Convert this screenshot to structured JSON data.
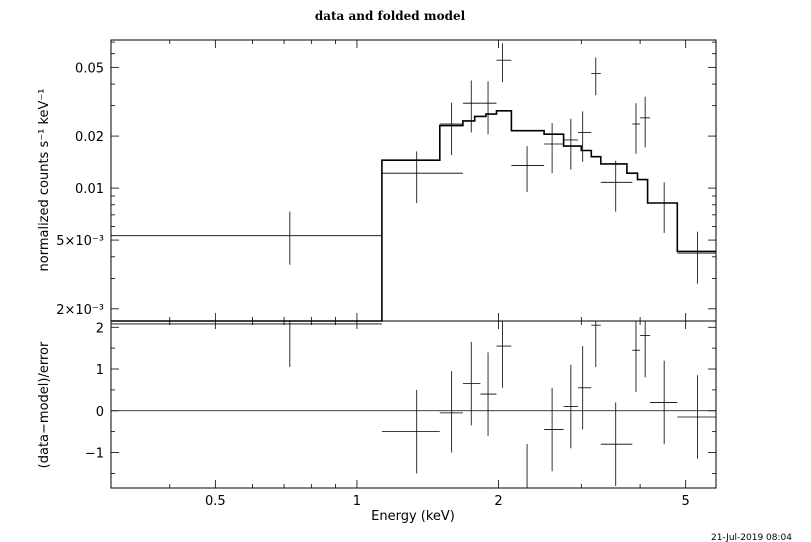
{
  "chart_data": {
    "type": "line",
    "title": "data and folded model",
    "timestamp": "21-Jul-2019 08:04",
    "xlabel": "Energy (keV)",
    "xscale": "log",
    "xlim": [
      0.3,
      5.8
    ],
    "xticks": [
      {
        "value": 0.5,
        "label": "0.5"
      },
      {
        "value": 1,
        "label": "1"
      },
      {
        "value": 2,
        "label": "2"
      },
      {
        "value": 5,
        "label": "5"
      }
    ],
    "panels": {
      "upper": {
        "ylabel": "normalized counts s⁻¹ keV⁻¹",
        "yscale": "log",
        "ylim": [
          0.0017,
          0.072
        ],
        "yticks": [
          {
            "value": 0.002,
            "label": "2×10⁻³"
          },
          {
            "value": 0.005,
            "label": "5×10⁻³"
          },
          {
            "value": 0.01,
            "label": "0.01"
          },
          {
            "value": 0.02,
            "label": "0.02"
          },
          {
            "value": 0.05,
            "label": "0.05"
          }
        ],
        "data": [
          {
            "xlo": 0.3,
            "xhi": 1.13,
            "x": 0.72,
            "y": 0.0053,
            "ylo": 0.0036,
            "yhi": 0.0073
          },
          {
            "xlo": 1.13,
            "xhi": 1.68,
            "x": 1.34,
            "y": 0.0122,
            "ylo": 0.0082,
            "yhi": 0.0163
          },
          {
            "xlo": 1.5,
            "xhi": 1.68,
            "x": 1.59,
            "y": 0.0235,
            "ylo": 0.0155,
            "yhi": 0.0312
          },
          {
            "xlo": 1.68,
            "xhi": 1.83,
            "x": 1.75,
            "y": 0.031,
            "ylo": 0.021,
            "yhi": 0.042
          },
          {
            "xlo": 1.83,
            "xhi": 1.98,
            "x": 1.9,
            "y": 0.031,
            "ylo": 0.0205,
            "yhi": 0.0415
          },
          {
            "xlo": 1.98,
            "xhi": 2.13,
            "x": 2.04,
            "y": 0.055,
            "ylo": 0.041,
            "yhi": 0.069
          },
          {
            "xlo": 2.13,
            "xhi": 2.5,
            "x": 2.3,
            "y": 0.0135,
            "ylo": 0.0095,
            "yhi": 0.0175
          },
          {
            "xlo": 2.5,
            "xhi": 2.75,
            "x": 2.6,
            "y": 0.018,
            "ylo": 0.0122,
            "yhi": 0.0238
          },
          {
            "xlo": 2.75,
            "xhi": 2.95,
            "x": 2.85,
            "y": 0.019,
            "ylo": 0.0128,
            "yhi": 0.0252
          },
          {
            "xlo": 2.95,
            "xhi": 3.15,
            "x": 3.02,
            "y": 0.021,
            "ylo": 0.0142,
            "yhi": 0.0278
          },
          {
            "xlo": 3.15,
            "xhi": 3.3,
            "x": 3.22,
            "y": 0.046,
            "ylo": 0.0345,
            "yhi": 0.057
          },
          {
            "xlo": 3.3,
            "xhi": 3.85,
            "x": 3.55,
            "y": 0.0108,
            "ylo": 0.0073,
            "yhi": 0.0144
          },
          {
            "xlo": 3.85,
            "xhi": 4.0,
            "x": 3.92,
            "y": 0.0235,
            "ylo": 0.0158,
            "yhi": 0.031
          },
          {
            "xlo": 4.0,
            "xhi": 4.2,
            "x": 4.1,
            "y": 0.0255,
            "ylo": 0.0172,
            "yhi": 0.0338
          },
          {
            "xlo": 4.2,
            "xhi": 4.8,
            "x": 4.5,
            "y": 0.0082,
            "ylo": 0.0055,
            "yhi": 0.0108
          },
          {
            "xlo": 4.8,
            "xhi": 5.8,
            "x": 5.3,
            "y": 0.0042,
            "ylo": 0.0028,
            "yhi": 0.0056
          }
        ],
        "model": [
          {
            "xlo": 0.3,
            "xhi": 1.13,
            "y": 0.0017
          },
          {
            "xlo": 1.13,
            "xhi": 1.5,
            "y": 0.0145
          },
          {
            "xlo": 1.5,
            "xhi": 1.68,
            "y": 0.023
          },
          {
            "xlo": 1.68,
            "xhi": 1.78,
            "y": 0.0245
          },
          {
            "xlo": 1.78,
            "xhi": 1.88,
            "y": 0.026
          },
          {
            "xlo": 1.88,
            "xhi": 1.98,
            "y": 0.0268
          },
          {
            "xlo": 1.98,
            "xhi": 2.13,
            "y": 0.028
          },
          {
            "xlo": 2.13,
            "xhi": 2.5,
            "y": 0.0215
          },
          {
            "xlo": 2.5,
            "xhi": 2.75,
            "y": 0.0205
          },
          {
            "xlo": 2.75,
            "xhi": 3.0,
            "y": 0.0175
          },
          {
            "xlo": 3.0,
            "xhi": 3.15,
            "y": 0.0165
          },
          {
            "xlo": 3.15,
            "xhi": 3.3,
            "y": 0.0152
          },
          {
            "xlo": 3.3,
            "xhi": 3.75,
            "y": 0.0138
          },
          {
            "xlo": 3.75,
            "xhi": 3.95,
            "y": 0.0122
          },
          {
            "xlo": 3.95,
            "xhi": 4.15,
            "y": 0.0112
          },
          {
            "xlo": 4.15,
            "xhi": 4.8,
            "y": 0.0082
          },
          {
            "xlo": 4.8,
            "xhi": 5.8,
            "y": 0.0043
          }
        ]
      },
      "lower": {
        "ylabel": "(data−model)/error",
        "ylim": [
          -1.85,
          2.15
        ],
        "yticks": [
          {
            "value": 2,
            "label": "2"
          },
          {
            "value": 1,
            "label": "1"
          },
          {
            "value": 0,
            "label": "0"
          },
          {
            "value": -1,
            "label": "−1"
          }
        ],
        "zero_line": 0,
        "residuals": [
          {
            "xlo": 0.3,
            "xhi": 1.13,
            "x": 0.72,
            "y": 2.08,
            "ylo": 1.05,
            "yhi": 2.15
          },
          {
            "xlo": 1.13,
            "xhi": 1.5,
            "x": 1.34,
            "y": -0.5,
            "ylo": -1.5,
            "yhi": 0.5
          },
          {
            "xlo": 1.5,
            "xhi": 1.68,
            "x": 1.59,
            "y": -0.05,
            "ylo": -1.0,
            "yhi": 0.95
          },
          {
            "xlo": 1.68,
            "xhi": 1.83,
            "x": 1.75,
            "y": 0.65,
            "ylo": -0.35,
            "yhi": 1.65
          },
          {
            "xlo": 1.83,
            "xhi": 1.98,
            "x": 1.9,
            "y": 0.4,
            "ylo": -0.6,
            "yhi": 1.4
          },
          {
            "xlo": 1.98,
            "xhi": 2.13,
            "x": 2.04,
            "y": 1.55,
            "ylo": 0.55,
            "yhi": 2.15
          },
          {
            "xlo": 2.13,
            "xhi": 2.5,
            "x": 2.3,
            "y": -1.85,
            "ylo": -1.85,
            "yhi": -0.8
          },
          {
            "xlo": 2.5,
            "xhi": 2.75,
            "x": 2.6,
            "y": -0.45,
            "ylo": -1.45,
            "yhi": 0.55
          },
          {
            "xlo": 2.75,
            "xhi": 2.95,
            "x": 2.85,
            "y": 0.1,
            "ylo": -0.9,
            "yhi": 1.1
          },
          {
            "xlo": 2.95,
            "xhi": 3.15,
            "x": 3.02,
            "y": 0.55,
            "ylo": -0.45,
            "yhi": 1.55
          },
          {
            "xlo": 3.15,
            "xhi": 3.3,
            "x": 3.22,
            "y": 2.05,
            "ylo": 1.05,
            "yhi": 2.15
          },
          {
            "xlo": 3.3,
            "xhi": 3.85,
            "x": 3.55,
            "y": -0.8,
            "ylo": -1.8,
            "yhi": 0.2
          },
          {
            "xlo": 3.85,
            "xhi": 4.0,
            "x": 3.92,
            "y": 1.45,
            "ylo": 0.45,
            "yhi": 2.15
          },
          {
            "xlo": 4.0,
            "xhi": 4.2,
            "x": 4.1,
            "y": 1.8,
            "ylo": 0.8,
            "yhi": 2.15
          },
          {
            "xlo": 4.2,
            "xhi": 4.8,
            "x": 4.5,
            "y": 0.2,
            "ylo": -0.8,
            "yhi": 1.2
          },
          {
            "xlo": 4.8,
            "xhi": 5.8,
            "x": 5.3,
            "y": -0.15,
            "ylo": -1.15,
            "yhi": 0.85
          }
        ]
      }
    }
  }
}
